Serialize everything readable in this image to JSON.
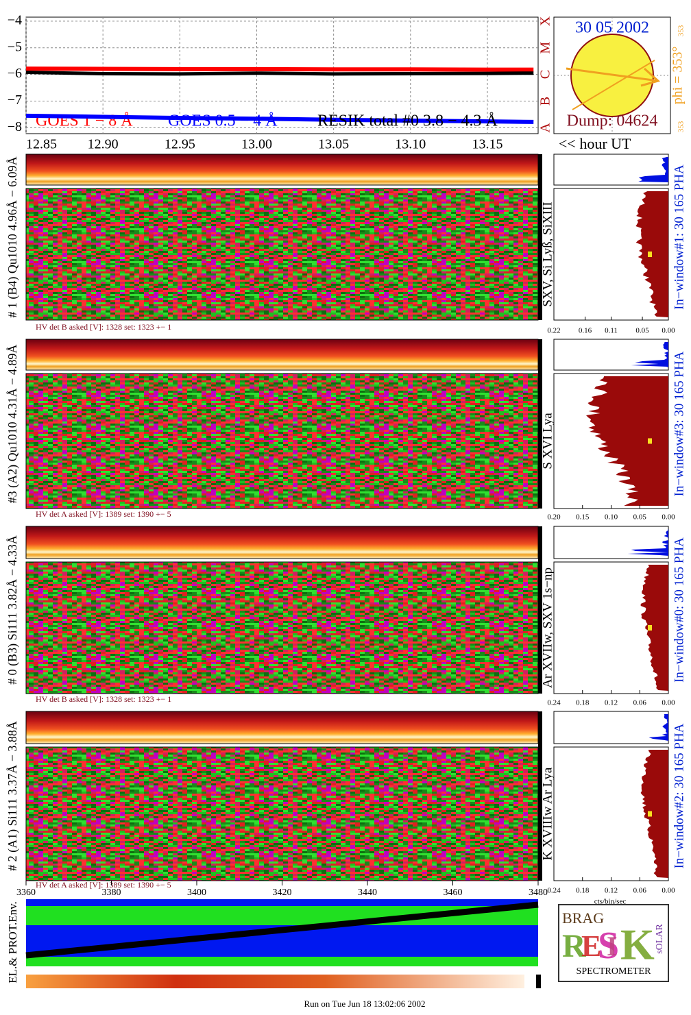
{
  "goes": {
    "type": "line",
    "xlim": [
      12.85,
      13.183
    ],
    "xticks": [
      {
        "value": 12.85,
        "label": "12.85"
      },
      {
        "value": 12.9,
        "label": "12.90"
      },
      12.95,
      {
        "value": 13.0,
        "label": "13.00"
      },
      13.05,
      {
        "value": 13.1,
        "label": "13.10"
      },
      13.15
    ],
    "ylim": [
      -8.22,
      -3.85
    ],
    "yticks": [
      {
        "value": -4,
        "label": "−4"
      },
      {
        "value": -5,
        "label": "−5"
      },
      {
        "value": -6,
        "label": "−6"
      },
      {
        "value": -7,
        "label": "−7"
      },
      {
        "value": -8,
        "label": "−8"
      }
    ],
    "class_ticks": [
      {
        "value": -8,
        "label": "A"
      },
      {
        "value": -7,
        "label": "B"
      },
      {
        "value": -6,
        "label": "C"
      },
      {
        "value": -5,
        "label": "M"
      },
      {
        "value": -4,
        "label": "X"
      }
    ],
    "grid": true,
    "x": [
      12.85,
      12.9,
      12.95,
      13.0,
      13.05,
      13.1,
      13.15,
      13.18
    ],
    "series": [
      {
        "name": "GOES 1 − 8 Å",
        "color": "#ff0000",
        "values": [
          -5.78,
          -5.79,
          -5.8,
          -5.8,
          -5.81,
          -5.81,
          -5.82,
          -5.82
        ]
      },
      {
        "name": "GOES 0.5 − 4 Å",
        "color": "#0000ff",
        "values": [
          -7.55,
          -7.59,
          -7.63,
          -7.66,
          -7.7,
          -7.73,
          -7.76,
          -7.78
        ]
      },
      {
        "name": "RESIK total #0  3.8 − 4.3 Å",
        "color": "#000000",
        "values": [
          -5.92,
          -5.97,
          -5.98,
          -5.95,
          -5.98,
          -5.97,
          -5.96,
          -5.95
        ]
      }
    ],
    "xlabel": "<< hour UT"
  },
  "sun": {
    "date": "30 05 2002",
    "dump": "Dump: 04624",
    "phi": "phi = 353°",
    "phi_top": "353",
    "phi_bottom": "353"
  },
  "panels": [
    {
      "label": "# 1 (B4) Qu1010 4.96Å − 6.09Å",
      "lines": "SXV, Si Lyß, SiXIII",
      "hv": "HV det B asked [V]:  1328 set:  1323  +−    1",
      "window": "In−window#1:   30 165  PHA",
      "xlim": [
        0.22,
        0
      ],
      "xticks": [
        0.22,
        0.16,
        0.11,
        0.05,
        {
          "value": 0,
          "label": "0.00"
        }
      ]
    },
    {
      "label": "#3 (A2) Qu1010  4.31Å − 4.89Å",
      "lines": "S XVI Lya",
      "hv": "HV det A asked [V]:  1389 set:  1390  +−    5",
      "window": "In−window#3:   30 165 PHA",
      "xlim": [
        0.2,
        0
      ],
      "xticks": [
        {
          "value": 0.2,
          "label": "0.20"
        },
        0.15,
        {
          "value": 0.1,
          "label": "0.10"
        },
        0.05,
        {
          "value": 0,
          "label": "0.00"
        }
      ]
    },
    {
      "label": "# 0 (B3) Si111  3.82Å − 4.33Å",
      "lines": "Ar XVIIw,  SXV 1s−np",
      "hv": "HV det B asked [V]:  1328 set:  1323  +−    1",
      "window": "In−window#0:   30 165  PHA",
      "xlim": [
        0.24,
        0
      ],
      "xticks": [
        0.24,
        0.18,
        0.12,
        0.06,
        {
          "value": 0,
          "label": "0.00"
        }
      ]
    },
    {
      "label": "# 2 (A1) Si111  3.37Å − 3.88Å",
      "lines": "K XVIIIw  Ar Lya",
      "hv": "HV det A asked [V]:  1389 set:  1390  +−    5",
      "window": "In−window#2:   30 165  PHA",
      "xlim": [
        0.24,
        0
      ],
      "xticks": [
        0.24,
        0.18,
        0.12,
        0.06,
        {
          "value": 0,
          "label": "0.00"
        }
      ]
    }
  ],
  "pha_unit": "cts/bin/sec",
  "env": {
    "label": "EL.& PROT.Env.",
    "xlim": [
      3360,
      3480
    ],
    "xticks": [
      3360,
      3380,
      3400,
      3420,
      3440,
      3460,
      3480
    ]
  },
  "logo": {
    "bragg": "BRAG",
    "letters": [
      "R",
      "E",
      "S",
      "I",
      "K"
    ],
    "solar": "sOLAR",
    "caption": "SPECTROMETER"
  },
  "footer": "Run on Tue Jun 18 13:02:06 2002"
}
